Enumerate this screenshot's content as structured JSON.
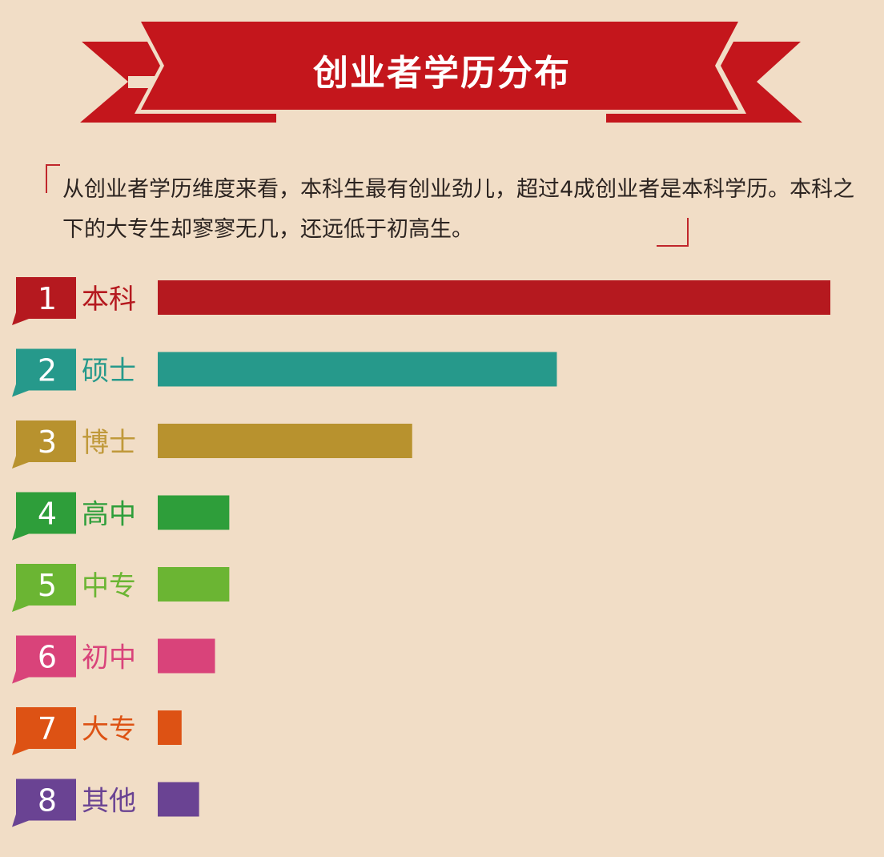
{
  "title": "创业者学历分布",
  "description": "从创业者学历维度来看，本科生最有创业劲儿，超过4成创业者是本科学历。本科之下的大专生却寥寥无几，还远低于初高生。",
  "colors": {
    "background": "#f1ddc6",
    "banner": "#c4161c",
    "banner_dark": "#a81218",
    "bracket": "#c0262b"
  },
  "chart_data": {
    "type": "bar",
    "orientation": "horizontal",
    "title": "创业者学历分布",
    "ranks": [
      "1",
      "2",
      "3",
      "4",
      "5",
      "6",
      "7",
      "8"
    ],
    "categories": [
      "本科",
      "硕士",
      "博士",
      "高中",
      "中专",
      "初中",
      "大专",
      "其他"
    ],
    "values": [
      42.3,
      25.1,
      16.0,
      4.5,
      4.5,
      3.6,
      1.5,
      2.6
    ],
    "unit": "% (estimated from bar lengths)",
    "colors": [
      "#b5191f",
      "#26998b",
      "#b8922e",
      "#2e9e3a",
      "#6bb533",
      "#d9437a",
      "#dd5214",
      "#6a4393"
    ],
    "label_colors": [
      "#b5191f",
      "#26998b",
      "#c0993a",
      "#2e9e3a",
      "#6bb533",
      "#d9437a",
      "#dd5214",
      "#6a4393"
    ],
    "xlim": [
      0,
      42.3
    ],
    "grid": false,
    "legend": "none"
  }
}
